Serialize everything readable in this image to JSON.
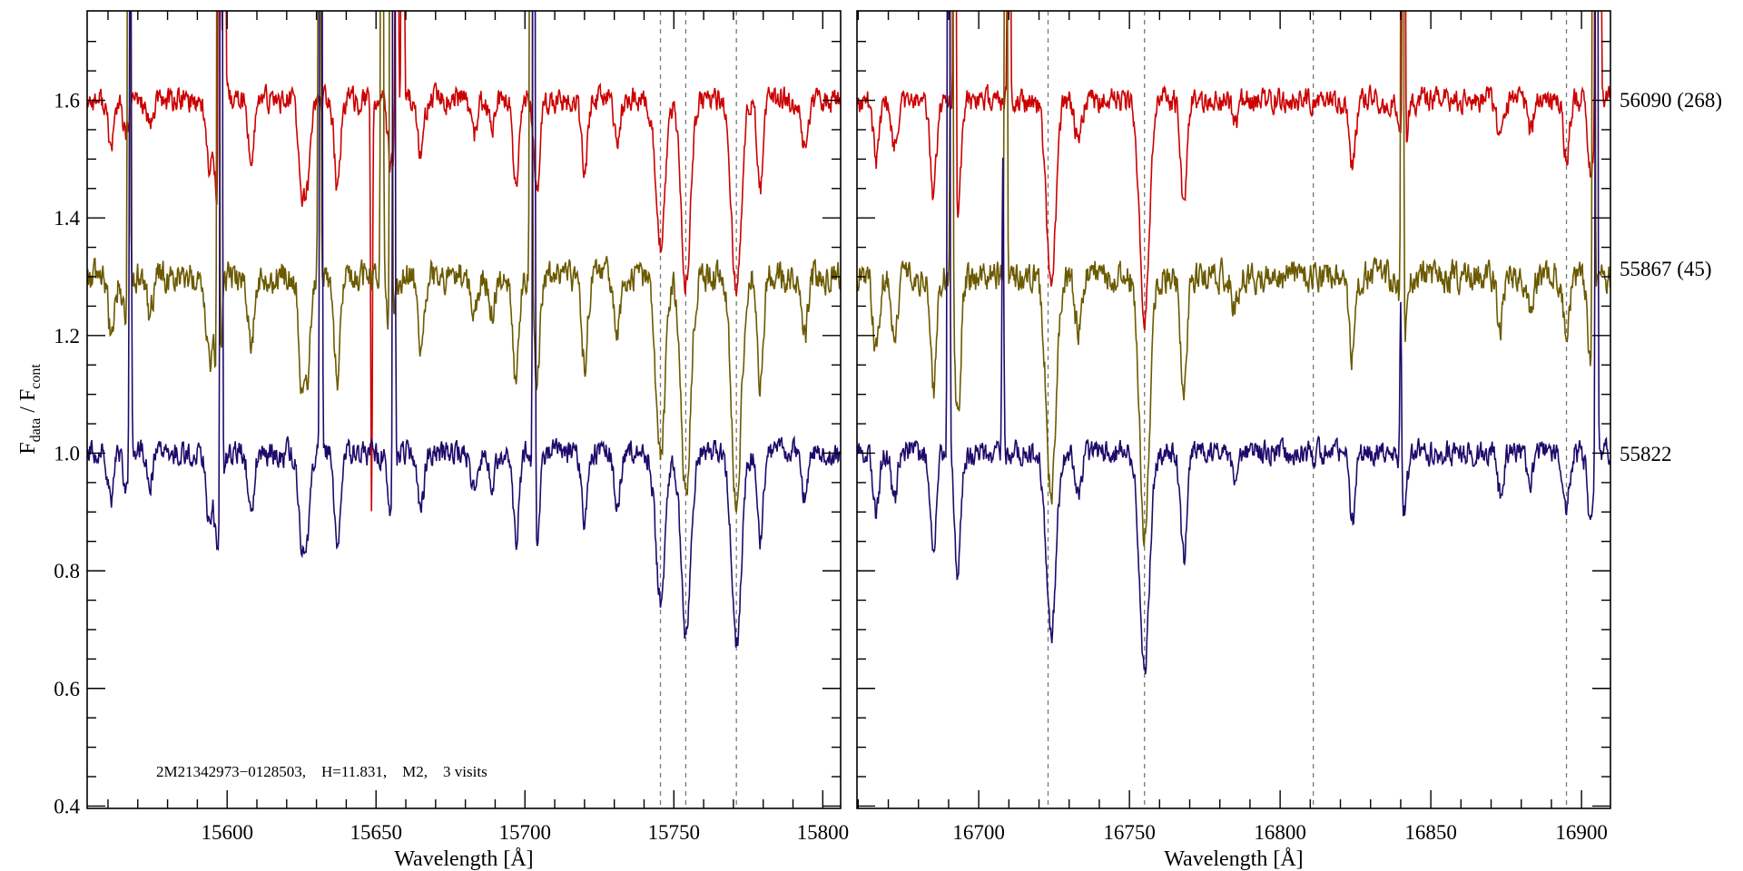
{
  "chart_data": {
    "type": "line",
    "ylabel_main": "F",
    "ylabel_sub1": "data",
    "ylabel_sep": " / F",
    "ylabel_sub2": "cont",
    "ylim": [
      0.396,
      1.752
    ],
    "ytick_values": [
      0.4,
      0.6,
      0.8,
      1.0,
      1.2,
      1.4,
      1.6
    ],
    "ytick_labels": [
      "0.4",
      "0.6",
      "0.8",
      "1.0",
      "1.2",
      "1.4",
      "1.6"
    ],
    "annotation": "2M21342973−0128503,    H=11.831,    M2,    3 visits",
    "panels": [
      {
        "xlabel": "Wavelength [Å]",
        "xlim": [
          15553,
          15806
        ],
        "xtick_values": [
          15600,
          15650,
          15700,
          15750,
          15800
        ],
        "xtick_labels": [
          "15600",
          "15650",
          "15700",
          "15750",
          "15800"
        ],
        "dashed_lines": [
          15745.5,
          15754,
          15771
        ]
      },
      {
        "xlabel": "Wavelength [Å]",
        "xlim": [
          16659.6,
          16909.6
        ],
        "xtick_values": [
          16700,
          16750,
          16800,
          16850,
          16900
        ],
        "xtick_labels": [
          "16700",
          "16750",
          "16800",
          "16850",
          "16900"
        ],
        "dashed_lines": [
          16723,
          16755,
          16811,
          16895
        ]
      }
    ],
    "absorption_lines": [
      [
        15561,
        0.08
      ],
      [
        15566,
        0.06
      ],
      [
        15574,
        0.05
      ],
      [
        15594,
        0.12
      ],
      [
        15597,
        0.18
      ],
      [
        15608,
        0.1
      ],
      [
        15625,
        0.15
      ],
      [
        15627,
        0.13
      ],
      [
        15637,
        0.15
      ],
      [
        15655,
        0.12
      ],
      [
        15665,
        0.1
      ],
      [
        15683,
        0.06
      ],
      [
        15689,
        0.05
      ],
      [
        15697,
        0.15
      ],
      [
        15704,
        0.15
      ],
      [
        15720,
        0.12
      ],
      [
        15731,
        0.08
      ],
      [
        15745.5,
        0.25
      ],
      [
        15754,
        0.31
      ],
      [
        15771,
        0.33
      ],
      [
        15779,
        0.15
      ],
      [
        15794,
        0.08
      ],
      [
        16666,
        0.1
      ],
      [
        16672,
        0.08
      ],
      [
        16685,
        0.16
      ],
      [
        16693,
        0.2
      ],
      [
        16724,
        0.31
      ],
      [
        16733,
        0.08
      ],
      [
        16755,
        0.37
      ],
      [
        16768,
        0.18
      ],
      [
        16785,
        0.04
      ],
      [
        16824,
        0.11
      ],
      [
        16841,
        0.1
      ],
      [
        16873,
        0.07
      ],
      [
        16883,
        0.05
      ],
      [
        16895,
        0.09
      ],
      [
        16903,
        0.12
      ]
    ],
    "series": [
      {
        "name": "56090 (268)",
        "color": "#cc0000",
        "offset": 0.6,
        "depth_scale": 1.0,
        "noise": 0.02,
        "seed": 11,
        "spikes": [
          [
            15597.5,
            3
          ],
          [
            15599,
            3
          ],
          [
            15648.5,
            -0.7
          ],
          [
            15657,
            3
          ],
          [
            15659,
            3
          ],
          [
            16692,
            3
          ],
          [
            16710,
            3
          ],
          [
            16841,
            3
          ],
          [
            16905,
            3
          ],
          [
            16906,
            3
          ]
        ]
      },
      {
        "name": "55867 (45)",
        "color": "#6b5a00",
        "offset": 0.3,
        "depth_scale": 1.2,
        "noise": 0.025,
        "seed": 23,
        "spikes": [
          [
            15567,
            3
          ],
          [
            15597,
            3
          ],
          [
            15631,
            3
          ],
          [
            15652,
            3
          ],
          [
            15655,
            3
          ],
          [
            15702,
            3
          ],
          [
            16691,
            3
          ],
          [
            16709,
            3
          ],
          [
            16840.5,
            3
          ],
          [
            16904,
            3
          ]
        ]
      },
      {
        "name": "55822",
        "color": "#1f0a6b",
        "offset": 0.0,
        "depth_scale": 1.0,
        "noise": 0.02,
        "seed": 37,
        "spikes": [
          [
            15567.5,
            1.2
          ],
          [
            15598,
            3
          ],
          [
            15631.5,
            3
          ],
          [
            15656,
            3
          ],
          [
            15703,
            3
          ],
          [
            16690,
            3
          ],
          [
            16708,
            0.5
          ],
          [
            16840,
            0.3
          ],
          [
            16905,
            3
          ]
        ]
      }
    ]
  }
}
